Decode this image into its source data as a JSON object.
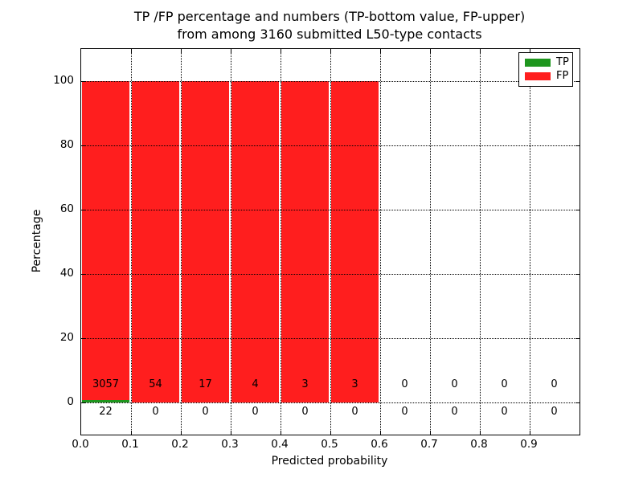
{
  "figure": {
    "title_line1": "TP /FP percentage and numbers (TP-bottom value, FP-upper)",
    "title_line2": "from among 3160 submitted L50-type contacts",
    "background": "#ffffff"
  },
  "chart_data": {
    "type": "bar",
    "stacked": true,
    "title": "TP /FP percentage and numbers (TP-bottom value, FP-upper) from among 3160 submitted L50-type contacts",
    "xlabel": "Predicted probability",
    "ylabel": "Percentage",
    "xlim": [
      0.0,
      1.0
    ],
    "ylim": [
      -10,
      110
    ],
    "grid": true,
    "grid_style": "dotted",
    "bin_width": 0.1,
    "bin_edges": [
      0.0,
      0.1,
      0.2,
      0.3,
      0.4,
      0.5,
      0.6,
      0.7,
      0.8,
      0.9,
      1.0
    ],
    "categories": [
      "0.0-0.1",
      "0.1-0.2",
      "0.2-0.3",
      "0.3-0.4",
      "0.4-0.5",
      "0.5-0.6",
      "0.6-0.7",
      "0.7-0.8",
      "0.8-0.9",
      "0.9-1.0"
    ],
    "total_contacts": 3160,
    "series": [
      {
        "name": "TP",
        "color": "#1e961e",
        "counts": [
          22,
          0,
          0,
          0,
          0,
          0,
          0,
          0,
          0,
          0
        ],
        "percent": [
          0.71,
          0,
          0,
          0,
          0,
          0,
          0,
          0,
          0,
          0
        ]
      },
      {
        "name": "FP",
        "color": "#ff1e1e",
        "counts": [
          3057,
          54,
          17,
          4,
          3,
          3,
          0,
          0,
          0,
          0
        ],
        "percent": [
          99.29,
          100,
          100,
          100,
          100,
          100,
          0,
          0,
          0,
          0
        ]
      }
    ],
    "xticks": [
      "0.0",
      "0.1",
      "0.2",
      "0.3",
      "0.4",
      "0.5",
      "0.6",
      "0.7",
      "0.8",
      "0.9"
    ],
    "yticks": [
      0,
      20,
      40,
      60,
      80,
      100
    ],
    "legend": {
      "position": "upper right",
      "entries": [
        {
          "label": "TP",
          "color": "#1e961e"
        },
        {
          "label": "FP",
          "color": "#ff1e1e"
        }
      ]
    }
  }
}
